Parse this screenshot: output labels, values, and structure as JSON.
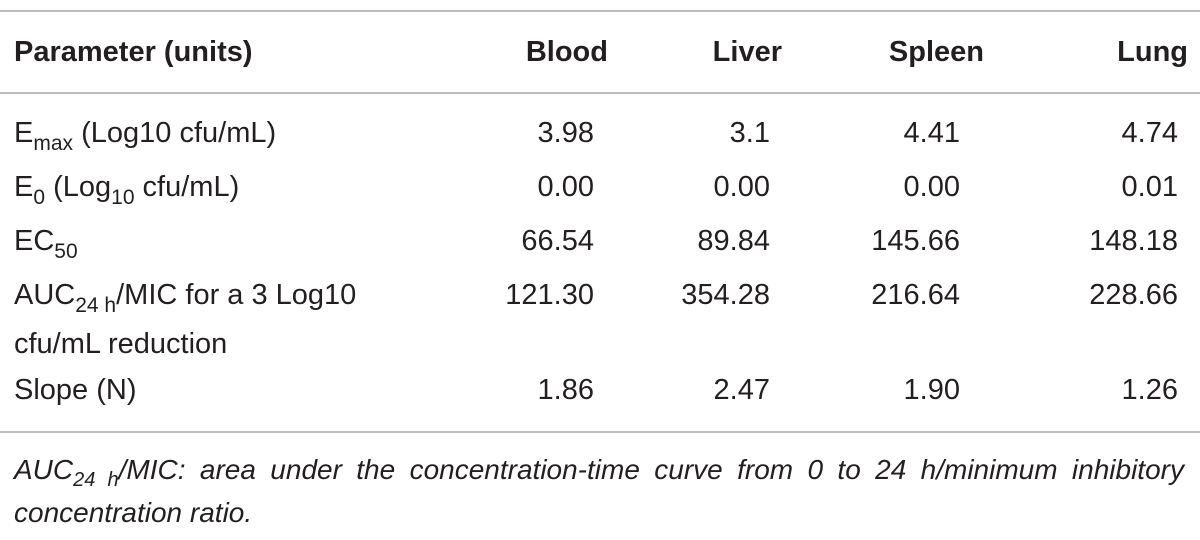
{
  "table": {
    "headers": [
      "Parameter (units)",
      "Blood",
      "Liver",
      "Spleen",
      "Lung"
    ],
    "rows": [
      {
        "param": {
          "pre": "E",
          "sub": "max",
          "post": " (Log10 cfu/mL)"
        },
        "values": [
          "3.98",
          "3.1",
          "4.41",
          "4.74"
        ]
      },
      {
        "param": {
          "pre": "E",
          "sub": "0",
          "mid": " (Log",
          "sub2": "10",
          "post": " cfu/mL)"
        },
        "values": [
          "0.00",
          "0.00",
          "0.00",
          "0.01"
        ]
      },
      {
        "param": {
          "pre": "EC",
          "sub": "50"
        },
        "values": [
          "66.54",
          "89.84",
          "145.66",
          "148.18"
        ]
      },
      {
        "param": {
          "pre": "AUC",
          "sub": "24 h",
          "post": "/MIC for a 3 Log10",
          "line2": "cfu/mL reduction"
        },
        "values": [
          "121.30",
          "354.28",
          "216.64",
          "228.66"
        ]
      },
      {
        "param": {
          "pre": "Slope (N)"
        },
        "values": [
          "1.86",
          "2.47",
          "1.90",
          "1.26"
        ]
      }
    ]
  },
  "footnote": {
    "pre": "AUC",
    "sub": "24 h",
    "post": "/MIC: area under the concentration-time curve from 0 to 24 h/minimum inhibitory concentration ratio."
  }
}
